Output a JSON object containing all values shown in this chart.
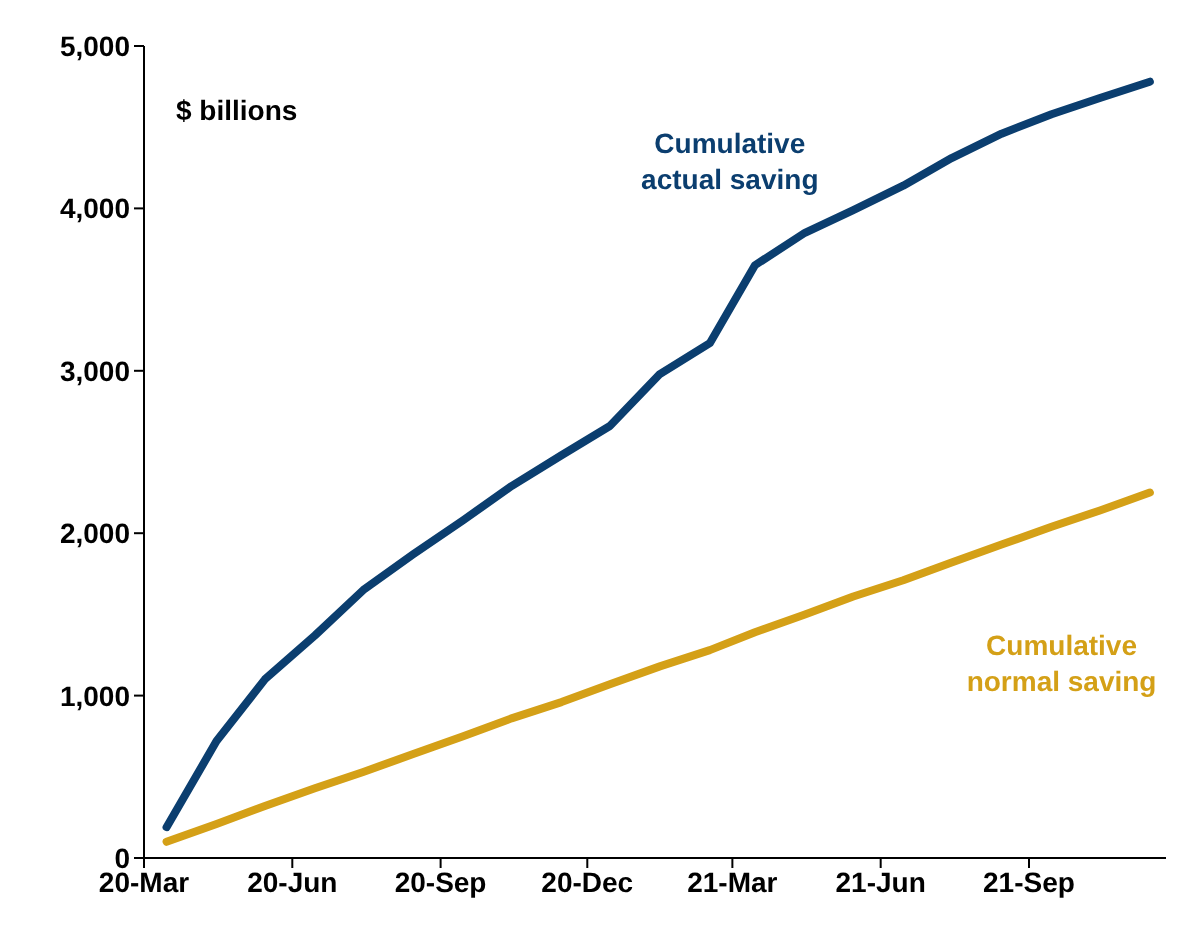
{
  "chart_data": {
    "type": "line",
    "ylabel": "$ billions",
    "x": [
      "2020-03-15",
      "2020-04-15",
      "2020-05-15",
      "2020-06-15",
      "2020-07-15",
      "2020-08-15",
      "2020-09-15",
      "2020-10-15",
      "2020-11-15",
      "2020-12-15",
      "2021-01-15",
      "2021-02-15",
      "2021-03-15",
      "2021-04-15",
      "2021-05-15",
      "2021-06-15",
      "2021-07-15",
      "2021-08-15",
      "2021-09-15",
      "2021-10-15",
      "2021-11-15"
    ],
    "series": [
      {
        "name": "Cumulative actual saving",
        "color": "#0b3e6f",
        "values": [
          190,
          720,
          1100,
          1370,
          1650,
          1870,
          2080,
          2290,
          2480,
          2660,
          2980,
          3170,
          3650,
          3850,
          3990,
          4140,
          4310,
          4460,
          4580,
          4680,
          4780
        ]
      },
      {
        "name": "Cumulative normal saving",
        "color": "#d4a017",
        "values": [
          100,
          210,
          320,
          430,
          530,
          640,
          750,
          860,
          960,
          1070,
          1180,
          1280,
          1390,
          1500,
          1610,
          1710,
          1820,
          1930,
          2040,
          2140,
          2250
        ]
      }
    ],
    "xlim": [
      "2020-03-01",
      "2021-11-25"
    ],
    "xticks": [
      {
        "value": "2020-03-01",
        "label": "20-Mar"
      },
      {
        "value": "2020-06-01",
        "label": "20-Jun"
      },
      {
        "value": "2020-09-01",
        "label": "20-Sep"
      },
      {
        "value": "2020-12-01",
        "label": "20-Dec"
      },
      {
        "value": "2021-03-01",
        "label": "21-Mar"
      },
      {
        "value": "2021-06-01",
        "label": "21-Jun"
      },
      {
        "value": "2021-09-01",
        "label": "21-Sep"
      }
    ],
    "ylim": [
      0,
      5000
    ],
    "yticks": [
      {
        "value": 0,
        "label": "0"
      },
      {
        "value": 1000,
        "label": "1,000"
      },
      {
        "value": 2000,
        "label": "2,000"
      },
      {
        "value": 3000,
        "label": "3,000"
      },
      {
        "value": 4000,
        "label": "4,000"
      },
      {
        "value": 5000,
        "label": "5,000"
      }
    ],
    "grid": false,
    "legend": false,
    "marker": "none",
    "line_style": "solid"
  }
}
